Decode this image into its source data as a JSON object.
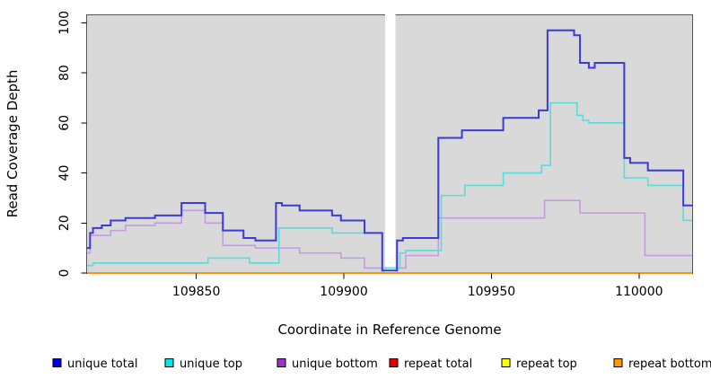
{
  "chart_data": {
    "type": "line",
    "subtype": "step-after",
    "title": "",
    "xlabel": "Coordinate in Reference Genome",
    "ylabel": "Read Coverage Depth",
    "xlim": [
      109813,
      110018
    ],
    "ylim": [
      0,
      103
    ],
    "x_ticks": [
      109850,
      109900,
      109950,
      110000
    ],
    "y_ticks": [
      0,
      20,
      40,
      60,
      80,
      100
    ],
    "grid": false,
    "plot_bg_color": "#d9d9d9",
    "frame_color": "#555555",
    "gap_region": {
      "x_from": 109914,
      "x_to": 109917.5,
      "color": "#ffffff",
      "note": "white vertical band with no coverage data"
    },
    "series": [
      {
        "name": "repeat total",
        "line_color": "#e60000",
        "width": 1.6,
        "points": [
          [
            109813,
            0
          ],
          [
            110018,
            0
          ]
        ]
      },
      {
        "name": "repeat top",
        "line_color": "#f5f500",
        "width": 1.6,
        "points": [
          [
            109813,
            0
          ],
          [
            110018,
            0
          ]
        ]
      },
      {
        "name": "repeat bottom",
        "line_color": "#ff9019",
        "width": 2,
        "points": [
          [
            109813,
            0
          ],
          [
            110018,
            0
          ]
        ]
      },
      {
        "name": "unique bottom",
        "line_color": "#c39ddf",
        "width": 1.6,
        "points": [
          [
            109813,
            8
          ],
          [
            109814,
            15
          ],
          [
            109821,
            17
          ],
          [
            109826,
            19
          ],
          [
            109836,
            20
          ],
          [
            109845,
            25
          ],
          [
            109853,
            20
          ],
          [
            109859,
            11
          ],
          [
            109870,
            10
          ],
          [
            109885,
            8
          ],
          [
            109899,
            6
          ],
          [
            109907,
            2
          ],
          [
            109921,
            7
          ],
          [
            109932,
            22
          ],
          [
            109968,
            29
          ],
          [
            109980,
            24
          ],
          [
            110002,
            7
          ],
          [
            110018,
            7
          ]
        ]
      },
      {
        "name": "unique top",
        "line_color": "#58dcdc",
        "width": 1.6,
        "points": [
          [
            109813,
            3
          ],
          [
            109815,
            4
          ],
          [
            109854,
            6
          ],
          [
            109868,
            4
          ],
          [
            109878,
            18
          ],
          [
            109896,
            16
          ],
          [
            109913,
            2
          ],
          [
            109919,
            8
          ],
          [
            109921,
            9
          ],
          [
            109933,
            31
          ],
          [
            109941,
            35
          ],
          [
            109954,
            40
          ],
          [
            109967,
            43
          ],
          [
            109970,
            68
          ],
          [
            109979,
            63
          ],
          [
            109981,
            61
          ],
          [
            109983,
            60
          ],
          [
            109995,
            38
          ],
          [
            110003,
            35
          ],
          [
            110015,
            21
          ],
          [
            110018,
            21
          ]
        ]
      },
      {
        "name": "unique total",
        "line_color": "#3b3bd8",
        "width": 2,
        "points": [
          [
            109813,
            10
          ],
          [
            109814,
            16
          ],
          [
            109815,
            18
          ],
          [
            109818,
            19
          ],
          [
            109821,
            21
          ],
          [
            109826,
            22
          ],
          [
            109836,
            23
          ],
          [
            109845,
            28
          ],
          [
            109853,
            24
          ],
          [
            109859,
            17
          ],
          [
            109866,
            14
          ],
          [
            109870,
            13
          ],
          [
            109877,
            28
          ],
          [
            109879,
            27
          ],
          [
            109885,
            25
          ],
          [
            109896,
            23
          ],
          [
            109899,
            21
          ],
          [
            109907,
            16
          ],
          [
            109913,
            1
          ],
          [
            109918,
            13
          ],
          [
            109920,
            14
          ],
          [
            109932,
            54
          ],
          [
            109940,
            57
          ],
          [
            109954,
            62
          ],
          [
            109966,
            65
          ],
          [
            109969,
            97
          ],
          [
            109978,
            95
          ],
          [
            109980,
            84
          ],
          [
            109983,
            82
          ],
          [
            109985,
            84
          ],
          [
            109995,
            46
          ],
          [
            109997,
            44
          ],
          [
            110003,
            41
          ],
          [
            110015,
            27
          ],
          [
            110018,
            27
          ]
        ]
      }
    ],
    "legend": {
      "position": "bottom",
      "items": [
        {
          "label": "unique total",
          "swatch_color": "#0000e0"
        },
        {
          "label": "unique top",
          "swatch_color": "#00e8e8"
        },
        {
          "label": "unique bottom",
          "swatch_color": "#9933cc"
        },
        {
          "label": "repeat total",
          "swatch_color": "#e60000"
        },
        {
          "label": "repeat top",
          "swatch_color": "#ffff00"
        },
        {
          "label": "repeat bottom",
          "swatch_color": "#ff9900"
        }
      ]
    }
  }
}
